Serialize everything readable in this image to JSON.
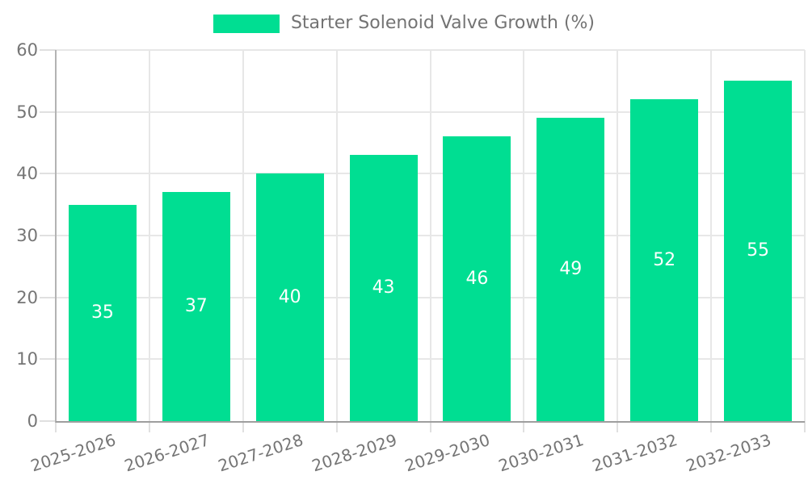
{
  "chart_data": {
    "type": "bar",
    "title": "",
    "legend": "Starter Solenoid Valve Growth (%)",
    "legend_position": "top",
    "categories": [
      "2025-2026",
      "2026-2027",
      "2027-2028",
      "2028-2029",
      "2029-2030",
      "2030-2031",
      "2031-2032",
      "2032-2033"
    ],
    "values": [
      35,
      37,
      40,
      43,
      46,
      49,
      52,
      55
    ],
    "xlabel": "",
    "ylabel": "",
    "ylim": [
      0,
      60
    ],
    "yticks": [
      0,
      10,
      20,
      30,
      40,
      50,
      60
    ],
    "grid": "both",
    "bar_color": "#00de92",
    "value_label_color": "#ffffff",
    "axis_text_color": "#757575",
    "gridline_color": "#e7e7e7"
  }
}
